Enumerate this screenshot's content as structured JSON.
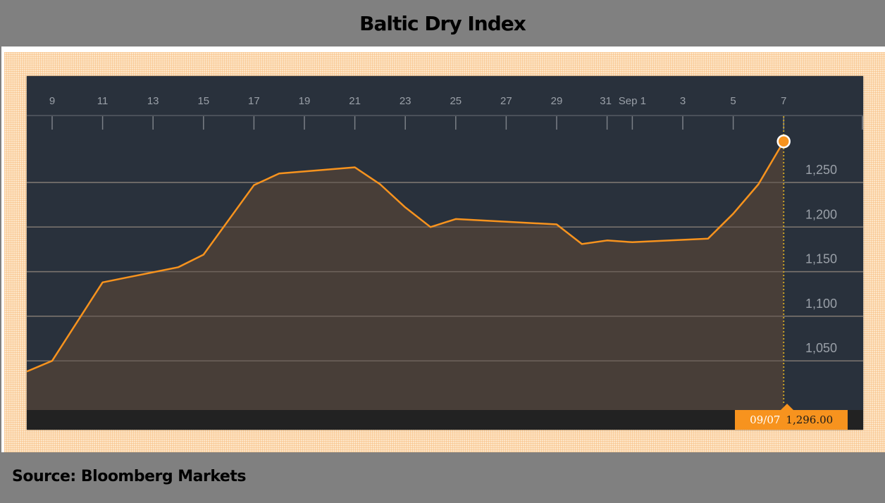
{
  "title": "Baltic Dry Index",
  "footer": "Source: Bloomberg Markets",
  "colors": {
    "page_bg": "#808080",
    "panel_bg": "#29313c",
    "line": "#f7931e",
    "area_fill": "#4a3f38",
    "gridline": "#6e6a66",
    "bottom_band": "#222222",
    "tooltip_bg": "#f7931e"
  },
  "tooltip": {
    "date": "09/07",
    "value": "1,296.00"
  },
  "chart_data": {
    "type": "area",
    "title": "Baltic Dry Index",
    "xlabel": "",
    "ylabel": "",
    "x_tick_labels": [
      "9",
      "11",
      "13",
      "15",
      "17",
      "19",
      "21",
      "23",
      "25",
      "27",
      "29",
      "31",
      "Sep 1",
      "3",
      "5",
      "7"
    ],
    "y_tick_labels": [
      "1,050",
      "1,100",
      "1,150",
      "1,200",
      "1,250"
    ],
    "y_ticks": [
      1050,
      1100,
      1150,
      1200,
      1250
    ],
    "ylim": [
      996,
      1310
    ],
    "grid": true,
    "legend": null,
    "x": [
      "Aug 8",
      "Aug 9",
      "Aug 11",
      "Aug 14",
      "Aug 15",
      "Aug 17",
      "Aug 18",
      "Aug 21",
      "Aug 22",
      "Aug 23",
      "Aug 24",
      "Aug 25",
      "Aug 29",
      "Aug 30",
      "Aug 31",
      "Sep 1",
      "Sep 4",
      "Sep 5",
      "Sep 6",
      "Sep 7"
    ],
    "series": [
      {
        "name": "Baltic Dry Index",
        "values": [
          1038,
          1050,
          1138,
          1155,
          1169,
          1247,
          1260,
          1267,
          1248,
          1222,
          1200,
          1209,
          1203,
          1181,
          1185,
          1183,
          1187,
          1215,
          1248,
          1296
        ]
      }
    ],
    "annotations": [
      {
        "label": "09/07",
        "value": "1,296.00"
      }
    ]
  }
}
